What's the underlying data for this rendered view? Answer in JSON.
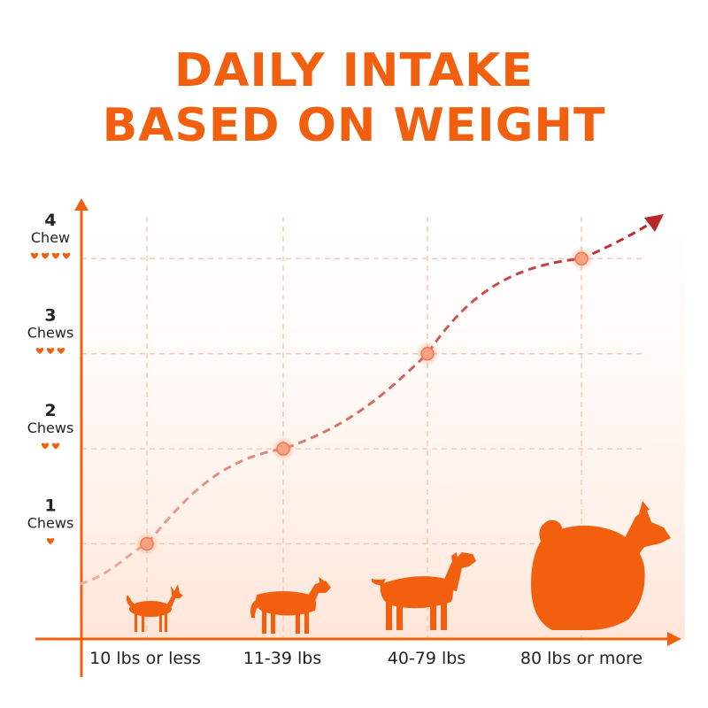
{
  "title_lines": [
    "DAILY INTAKE",
    "BASED ON WEIGHT"
  ],
  "colors": {
    "accent": "#f2600f",
    "title": "#f2600f",
    "curve_start": "#f2b0a0",
    "curve_end": "#b8262a",
    "grid": "#f7c9b4",
    "text": "#222222"
  },
  "chart_data": {
    "type": "line",
    "title": "DAILY INTAKE BASED ON WEIGHT",
    "xlabel": "",
    "ylabel": "",
    "categories": [
      "10 lbs or less",
      "11-39 lbs",
      "40-79 lbs",
      "80 lbs or more"
    ],
    "values": [
      1,
      2,
      3,
      4
    ],
    "ylim": [
      0,
      4.3
    ],
    "y_ticks": [
      {
        "value": 1,
        "number": "1",
        "unit": "Chews",
        "hearts": 1
      },
      {
        "value": 2,
        "number": "2",
        "unit": "Chews",
        "hearts": 2
      },
      {
        "value": 3,
        "number": "3",
        "unit": "Chews",
        "hearts": 3
      },
      {
        "value": 4,
        "number": "4",
        "unit": "Chew",
        "hearts": 4
      }
    ],
    "grid": true,
    "legend": "none",
    "icons": [
      "small-dog-icon",
      "medium-dog-icon",
      "large-dog-icon",
      "fluffy-dog-icon"
    ]
  }
}
